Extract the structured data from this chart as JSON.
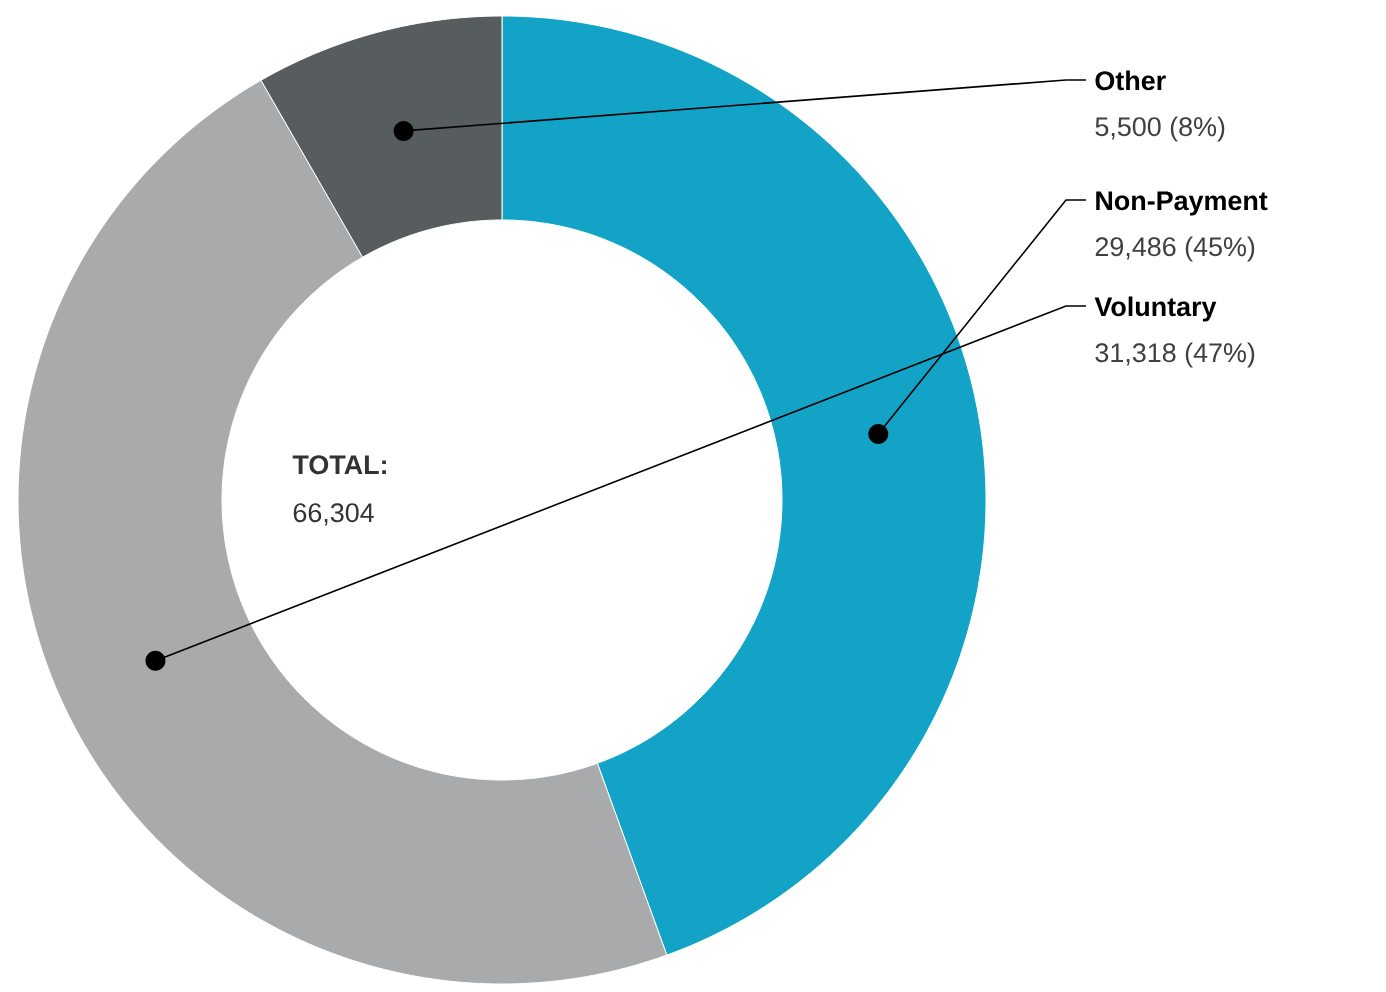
{
  "chart_data": {
    "type": "donut",
    "categories": [
      "Non-Payment",
      "Voluntary",
      "Other"
    ],
    "values": [
      29486,
      31318,
      5500
    ],
    "colors": [
      "#12a3c7",
      "#a8aaab",
      "#575c5f"
    ],
    "value_labels": [
      "29,486 (45%)",
      "31,318 (47%)",
      "5,500 (8%)"
    ],
    "annotations": [
      "TOTAL:",
      "66,304"
    ]
  }
}
